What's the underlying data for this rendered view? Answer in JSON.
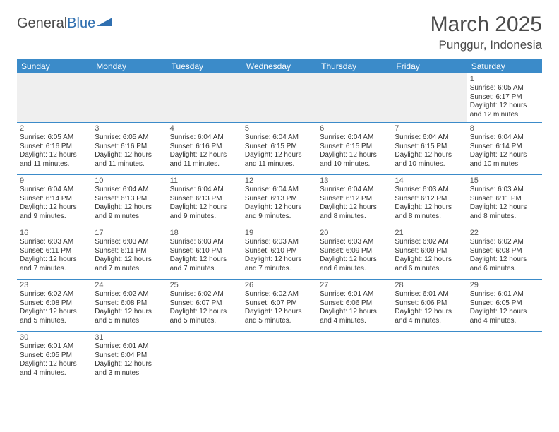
{
  "brand": {
    "part1": "General",
    "part2": "Blue"
  },
  "title": "March 2025",
  "location": "Punggur, Indonesia",
  "header_bg": "#3b8bc9",
  "weekdays": [
    "Sunday",
    "Monday",
    "Tuesday",
    "Wednesday",
    "Thursday",
    "Friday",
    "Saturday"
  ],
  "weeks": [
    [
      null,
      null,
      null,
      null,
      null,
      null,
      {
        "n": "1",
        "sr": "Sunrise: 6:05 AM",
        "ss": "Sunset: 6:17 PM",
        "d1": "Daylight: 12 hours",
        "d2": "and 12 minutes."
      }
    ],
    [
      {
        "n": "2",
        "sr": "Sunrise: 6:05 AM",
        "ss": "Sunset: 6:16 PM",
        "d1": "Daylight: 12 hours",
        "d2": "and 11 minutes."
      },
      {
        "n": "3",
        "sr": "Sunrise: 6:05 AM",
        "ss": "Sunset: 6:16 PM",
        "d1": "Daylight: 12 hours",
        "d2": "and 11 minutes."
      },
      {
        "n": "4",
        "sr": "Sunrise: 6:04 AM",
        "ss": "Sunset: 6:16 PM",
        "d1": "Daylight: 12 hours",
        "d2": "and 11 minutes."
      },
      {
        "n": "5",
        "sr": "Sunrise: 6:04 AM",
        "ss": "Sunset: 6:15 PM",
        "d1": "Daylight: 12 hours",
        "d2": "and 11 minutes."
      },
      {
        "n": "6",
        "sr": "Sunrise: 6:04 AM",
        "ss": "Sunset: 6:15 PM",
        "d1": "Daylight: 12 hours",
        "d2": "and 10 minutes."
      },
      {
        "n": "7",
        "sr": "Sunrise: 6:04 AM",
        "ss": "Sunset: 6:15 PM",
        "d1": "Daylight: 12 hours",
        "d2": "and 10 minutes."
      },
      {
        "n": "8",
        "sr": "Sunrise: 6:04 AM",
        "ss": "Sunset: 6:14 PM",
        "d1": "Daylight: 12 hours",
        "d2": "and 10 minutes."
      }
    ],
    [
      {
        "n": "9",
        "sr": "Sunrise: 6:04 AM",
        "ss": "Sunset: 6:14 PM",
        "d1": "Daylight: 12 hours",
        "d2": "and 9 minutes."
      },
      {
        "n": "10",
        "sr": "Sunrise: 6:04 AM",
        "ss": "Sunset: 6:13 PM",
        "d1": "Daylight: 12 hours",
        "d2": "and 9 minutes."
      },
      {
        "n": "11",
        "sr": "Sunrise: 6:04 AM",
        "ss": "Sunset: 6:13 PM",
        "d1": "Daylight: 12 hours",
        "d2": "and 9 minutes."
      },
      {
        "n": "12",
        "sr": "Sunrise: 6:04 AM",
        "ss": "Sunset: 6:13 PM",
        "d1": "Daylight: 12 hours",
        "d2": "and 9 minutes."
      },
      {
        "n": "13",
        "sr": "Sunrise: 6:04 AM",
        "ss": "Sunset: 6:12 PM",
        "d1": "Daylight: 12 hours",
        "d2": "and 8 minutes."
      },
      {
        "n": "14",
        "sr": "Sunrise: 6:03 AM",
        "ss": "Sunset: 6:12 PM",
        "d1": "Daylight: 12 hours",
        "d2": "and 8 minutes."
      },
      {
        "n": "15",
        "sr": "Sunrise: 6:03 AM",
        "ss": "Sunset: 6:11 PM",
        "d1": "Daylight: 12 hours",
        "d2": "and 8 minutes."
      }
    ],
    [
      {
        "n": "16",
        "sr": "Sunrise: 6:03 AM",
        "ss": "Sunset: 6:11 PM",
        "d1": "Daylight: 12 hours",
        "d2": "and 7 minutes."
      },
      {
        "n": "17",
        "sr": "Sunrise: 6:03 AM",
        "ss": "Sunset: 6:11 PM",
        "d1": "Daylight: 12 hours",
        "d2": "and 7 minutes."
      },
      {
        "n": "18",
        "sr": "Sunrise: 6:03 AM",
        "ss": "Sunset: 6:10 PM",
        "d1": "Daylight: 12 hours",
        "d2": "and 7 minutes."
      },
      {
        "n": "19",
        "sr": "Sunrise: 6:03 AM",
        "ss": "Sunset: 6:10 PM",
        "d1": "Daylight: 12 hours",
        "d2": "and 7 minutes."
      },
      {
        "n": "20",
        "sr": "Sunrise: 6:03 AM",
        "ss": "Sunset: 6:09 PM",
        "d1": "Daylight: 12 hours",
        "d2": "and 6 minutes."
      },
      {
        "n": "21",
        "sr": "Sunrise: 6:02 AM",
        "ss": "Sunset: 6:09 PM",
        "d1": "Daylight: 12 hours",
        "d2": "and 6 minutes."
      },
      {
        "n": "22",
        "sr": "Sunrise: 6:02 AM",
        "ss": "Sunset: 6:08 PM",
        "d1": "Daylight: 12 hours",
        "d2": "and 6 minutes."
      }
    ],
    [
      {
        "n": "23",
        "sr": "Sunrise: 6:02 AM",
        "ss": "Sunset: 6:08 PM",
        "d1": "Daylight: 12 hours",
        "d2": "and 5 minutes."
      },
      {
        "n": "24",
        "sr": "Sunrise: 6:02 AM",
        "ss": "Sunset: 6:08 PM",
        "d1": "Daylight: 12 hours",
        "d2": "and 5 minutes."
      },
      {
        "n": "25",
        "sr": "Sunrise: 6:02 AM",
        "ss": "Sunset: 6:07 PM",
        "d1": "Daylight: 12 hours",
        "d2": "and 5 minutes."
      },
      {
        "n": "26",
        "sr": "Sunrise: 6:02 AM",
        "ss": "Sunset: 6:07 PM",
        "d1": "Daylight: 12 hours",
        "d2": "and 5 minutes."
      },
      {
        "n": "27",
        "sr": "Sunrise: 6:01 AM",
        "ss": "Sunset: 6:06 PM",
        "d1": "Daylight: 12 hours",
        "d2": "and 4 minutes."
      },
      {
        "n": "28",
        "sr": "Sunrise: 6:01 AM",
        "ss": "Sunset: 6:06 PM",
        "d1": "Daylight: 12 hours",
        "d2": "and 4 minutes."
      },
      {
        "n": "29",
        "sr": "Sunrise: 6:01 AM",
        "ss": "Sunset: 6:05 PM",
        "d1": "Daylight: 12 hours",
        "d2": "and 4 minutes."
      }
    ],
    [
      {
        "n": "30",
        "sr": "Sunrise: 6:01 AM",
        "ss": "Sunset: 6:05 PM",
        "d1": "Daylight: 12 hours",
        "d2": "and 4 minutes."
      },
      {
        "n": "31",
        "sr": "Sunrise: 6:01 AM",
        "ss": "Sunset: 6:04 PM",
        "d1": "Daylight: 12 hours",
        "d2": "and 3 minutes."
      },
      null,
      null,
      null,
      null,
      null
    ]
  ]
}
